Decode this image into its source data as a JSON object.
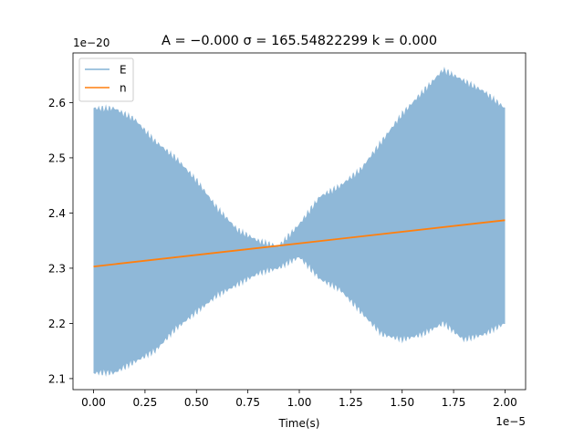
{
  "chart_data": {
    "type": "area",
    "title": "A = −0.000  σ = 165.54822299  k = 0.000",
    "xlabel": "Time(s)",
    "ylabel": "",
    "x_offset_text": "1e−5",
    "y_offset_text": "1e−20",
    "xlim": [
      -0.1,
      2.1
    ],
    "ylim": [
      2.08,
      2.69
    ],
    "x_ticks": [
      0.0,
      0.25,
      0.5,
      0.75,
      1.0,
      1.25,
      1.5,
      1.75,
      2.0
    ],
    "x_tick_labels": [
      "0.00",
      "0.25",
      "0.50",
      "0.75",
      "1.00",
      "1.25",
      "1.50",
      "1.75",
      "2.00"
    ],
    "y_ticks": [
      2.1,
      2.2,
      2.3,
      2.4,
      2.5,
      2.6
    ],
    "y_tick_labels": [
      "2.1",
      "2.2",
      "2.3",
      "2.4",
      "2.5",
      "2.6"
    ],
    "grid": false,
    "legend_position": "upper-left",
    "series": [
      {
        "name": "E",
        "kind": "envelope",
        "color": "#8fb8d8",
        "legend_color": "#83b4d6",
        "x": [
          0.0,
          0.1,
          0.2,
          0.3,
          0.4,
          0.5,
          0.6,
          0.7,
          0.8,
          0.9,
          1.0,
          1.1,
          1.2,
          1.3,
          1.4,
          1.5,
          1.6,
          1.7,
          1.8,
          1.9,
          2.0
        ],
        "upper": [
          2.59,
          2.59,
          2.57,
          2.53,
          2.5,
          2.46,
          2.41,
          2.37,
          2.35,
          2.34,
          2.38,
          2.43,
          2.45,
          2.48,
          2.53,
          2.58,
          2.62,
          2.66,
          2.64,
          2.62,
          2.59
        ],
        "lower": [
          2.11,
          2.11,
          2.13,
          2.15,
          2.19,
          2.22,
          2.25,
          2.27,
          2.29,
          2.3,
          2.32,
          2.28,
          2.26,
          2.22,
          2.18,
          2.17,
          2.18,
          2.2,
          2.17,
          2.18,
          2.2
        ]
      },
      {
        "name": "n",
        "kind": "line",
        "color": "#ff7f0e",
        "x": [
          0.0,
          2.0
        ],
        "y": [
          2.303,
          2.387
        ]
      }
    ]
  }
}
